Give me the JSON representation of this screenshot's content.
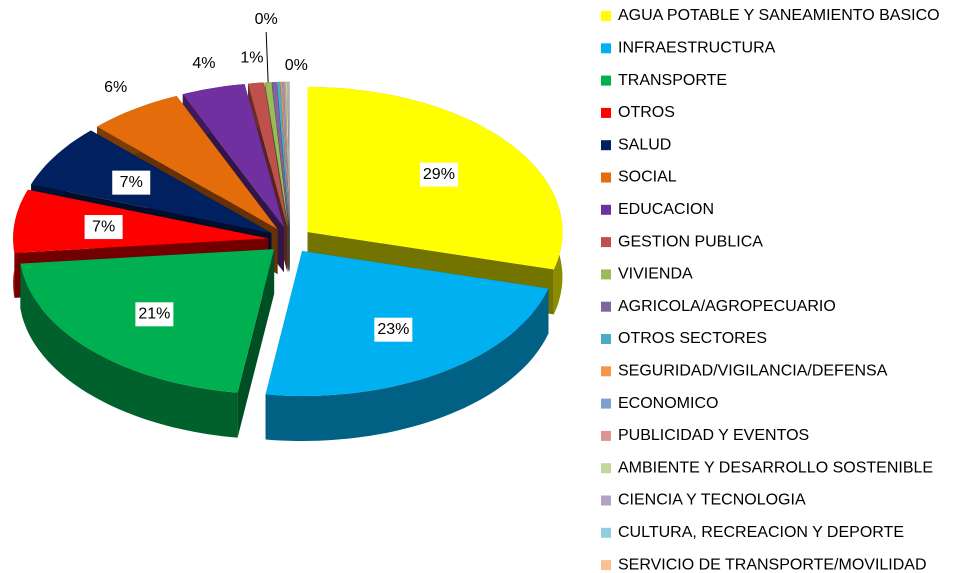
{
  "chart_data": {
    "type": "pie3d",
    "categories": [
      "AGUA POTABLE Y SANEAMIENTO BASICO",
      "INFRAESTRUCTURA",
      "TRANSPORTE",
      "OTROS",
      "SALUD",
      "SOCIAL",
      "EDUCACION",
      "GESTION PUBLICA",
      "VIVIENDA",
      "AGRICOLA/AGROPECUARIO",
      "OTROS SECTORES",
      "SEGURIDAD/VIGILANCIA/DEFENSA",
      "ECONOMICO",
      "PUBLICIDAD Y EVENTOS",
      "AMBIENTE Y DESARROLLO SOSTENIBLE",
      "CIENCIA Y TECNOLOGIA",
      "CULTURA, RECREACION Y DEPORTE",
      "SERVICIO DE TRANSPORTE/MOVILIDAD"
    ],
    "values": [
      29,
      23,
      21,
      7,
      7,
      6,
      4,
      1,
      0.4,
      0.3,
      0.2,
      0.1,
      0.1,
      0.1,
      0.1,
      0.05,
      0.05,
      0.05
    ],
    "value_labels": [
      "29%",
      "23%",
      "21%",
      "7%",
      "7%",
      "6%",
      "4%",
      "1%",
      "0%",
      "0%",
      null,
      null,
      null,
      null,
      null,
      null,
      null,
      null
    ],
    "colors": [
      "#ffff00",
      "#00b0f0",
      "#00b050",
      "#ff0000",
      "#002060",
      "#e46c0a",
      "#7030a0",
      "#c0504d",
      "#9bbb59",
      "#8064a2",
      "#4bacc6",
      "#f79646",
      "#7f9fcf",
      "#d99694",
      "#c3d69b",
      "#b3a2c7",
      "#93cddd",
      "#fac090"
    ],
    "legend": "right"
  }
}
